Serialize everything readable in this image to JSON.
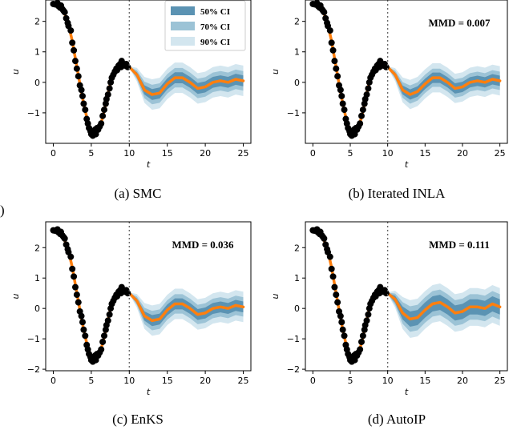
{
  "colors": {
    "ci50": "#5b93b3",
    "ci70": "#9cc3d6",
    "ci90": "#d3e6ef",
    "mean": "#ff7f0e",
    "obs": "#000000"
  },
  "stray_glyph": ")",
  "legend": {
    "items": [
      "50% CI",
      "70% CI",
      "90% CI"
    ]
  },
  "chart_data": [
    {
      "type": "line",
      "caption": "(a) SMC",
      "mmd": "",
      "legend": true,
      "xlabel": "t",
      "ylabel": "u",
      "xlim": [
        -1,
        26
      ],
      "ylim": [
        -2.0,
        2.7
      ],
      "xticks": [
        0,
        5,
        10,
        15,
        20,
        25
      ],
      "yticks": [
        -1,
        0,
        1,
        2
      ],
      "vline_x": 10,
      "forecast": [
        [
          10,
          0.5
        ],
        [
          11,
          0.25
        ],
        [
          12,
          -0.25
        ],
        [
          13,
          -0.4
        ],
        [
          14,
          -0.35
        ],
        [
          15,
          -0.05
        ],
        [
          16,
          0.15
        ],
        [
          17,
          0.15
        ],
        [
          18,
          0.0
        ],
        [
          19,
          -0.2
        ],
        [
          20,
          -0.15
        ],
        [
          21,
          0.0
        ],
        [
          22,
          0.05
        ],
        [
          23,
          0.0
        ],
        [
          24,
          0.1
        ],
        [
          25,
          0.05
        ]
      ],
      "band_widths": {
        "ci50": 0.18,
        "ci70": 0.32,
        "ci90": 0.5
      }
    },
    {
      "type": "line",
      "caption": "(b) Iterated INLA",
      "mmd": "MMD = 0.007",
      "legend": false,
      "xlabel": "t",
      "ylabel": "u",
      "xlim": [
        -1,
        26
      ],
      "ylim": [
        -2.0,
        2.7
      ],
      "xticks": [
        0,
        5,
        10,
        15,
        20,
        25
      ],
      "yticks": [
        -1,
        0,
        1,
        2
      ],
      "vline_x": 10,
      "forecast": [
        [
          10,
          0.5
        ],
        [
          11,
          0.25
        ],
        [
          12,
          -0.25
        ],
        [
          13,
          -0.4
        ],
        [
          14,
          -0.3
        ],
        [
          15,
          -0.05
        ],
        [
          16,
          0.15
        ],
        [
          17,
          0.15
        ],
        [
          18,
          0.0
        ],
        [
          19,
          -0.2
        ],
        [
          20,
          -0.15
        ],
        [
          21,
          0.0
        ],
        [
          22,
          0.05
        ],
        [
          23,
          0.0
        ],
        [
          24,
          0.1
        ],
        [
          25,
          0.05
        ]
      ],
      "band_widths": {
        "ci50": 0.17,
        "ci70": 0.3,
        "ci90": 0.48
      }
    },
    {
      "type": "line",
      "caption": "(c) EnKS",
      "mmd": "MMD = 0.036",
      "legend": false,
      "xlabel": "t",
      "ylabel": "u",
      "xlim": [
        -1,
        26
      ],
      "ylim": [
        -2.05,
        2.85
      ],
      "xticks": [
        0,
        5,
        10,
        15,
        20,
        25
      ],
      "yticks": [
        -2,
        -1,
        0,
        1,
        2
      ],
      "vline_x": 10,
      "forecast": [
        [
          10,
          0.5
        ],
        [
          11,
          0.25
        ],
        [
          12,
          -0.25
        ],
        [
          13,
          -0.4
        ],
        [
          14,
          -0.35
        ],
        [
          15,
          -0.05
        ],
        [
          16,
          0.15
        ],
        [
          17,
          0.15
        ],
        [
          18,
          0.0
        ],
        [
          19,
          -0.2
        ],
        [
          20,
          -0.15
        ],
        [
          21,
          0.0
        ],
        [
          22,
          0.05
        ],
        [
          23,
          0.0
        ],
        [
          24,
          0.1
        ],
        [
          25,
          0.05
        ]
      ],
      "band_widths": {
        "ci50": 0.18,
        "ci70": 0.32,
        "ci90": 0.5
      }
    },
    {
      "type": "line",
      "caption": "(d) AutoIP",
      "mmd": "MMD = 0.111",
      "legend": false,
      "xlabel": "t",
      "ylabel": "u",
      "xlim": [
        -1,
        26
      ],
      "ylim": [
        -2.05,
        2.85
      ],
      "xticks": [
        0,
        5,
        10,
        15,
        20,
        25
      ],
      "yticks": [
        -2,
        -1,
        0,
        1,
        2
      ],
      "vline_x": 10,
      "forecast": [
        [
          10,
          0.5
        ],
        [
          11,
          0.3
        ],
        [
          12,
          -0.15
        ],
        [
          13,
          -0.35
        ],
        [
          14,
          -0.3
        ],
        [
          15,
          -0.05
        ],
        [
          16,
          0.15
        ],
        [
          17,
          0.2
        ],
        [
          18,
          0.05
        ],
        [
          19,
          -0.15
        ],
        [
          20,
          -0.1
        ],
        [
          21,
          0.05
        ],
        [
          22,
          0.05
        ],
        [
          23,
          0.0
        ],
        [
          24,
          0.15
        ],
        [
          25,
          0.05
        ]
      ],
      "band_widths": {
        "ci50": 0.25,
        "ci70": 0.42,
        "ci90": 0.62
      }
    }
  ],
  "observations": [
    [
      0.0,
      2.57
    ],
    [
      0.2,
      2.56
    ],
    [
      0.4,
      2.55
    ],
    [
      0.55,
      2.6
    ],
    [
      0.7,
      2.5
    ],
    [
      0.9,
      2.45
    ],
    [
      1.0,
      2.52
    ],
    [
      1.2,
      2.4
    ],
    [
      1.35,
      2.35
    ],
    [
      1.5,
      2.3
    ],
    [
      1.7,
      2.1
    ],
    [
      1.9,
      1.95
    ],
    [
      2.0,
      1.85
    ],
    [
      2.3,
      1.7
    ],
    [
      2.5,
      1.3
    ],
    [
      2.7,
      1.05
    ],
    [
      2.9,
      0.7
    ],
    [
      3.1,
      0.45
    ],
    [
      3.3,
      0.2
    ],
    [
      3.5,
      -0.1
    ],
    [
      3.7,
      -0.25
    ],
    [
      3.85,
      -0.45
    ],
    [
      4.0,
      -0.7
    ],
    [
      4.2,
      -0.9
    ],
    [
      4.4,
      -1.2
    ],
    [
      4.55,
      -1.35
    ],
    [
      4.7,
      -1.5
    ],
    [
      4.9,
      -1.6
    ],
    [
      5.0,
      -1.7
    ],
    [
      5.2,
      -1.75
    ],
    [
      5.4,
      -1.6
    ],
    [
      5.5,
      -1.55
    ],
    [
      5.6,
      -1.7
    ],
    [
      5.75,
      -1.5
    ],
    [
      5.9,
      -1.55
    ],
    [
      6.1,
      -1.45
    ],
    [
      6.3,
      -1.35
    ],
    [
      6.5,
      -1.1
    ],
    [
      6.7,
      -0.9
    ],
    [
      6.9,
      -0.7
    ],
    [
      7.0,
      -0.55
    ],
    [
      7.2,
      -0.4
    ],
    [
      7.4,
      -0.2
    ],
    [
      7.55,
      0.0
    ],
    [
      7.7,
      0.15
    ],
    [
      7.9,
      0.25
    ],
    [
      8.1,
      0.35
    ],
    [
      8.3,
      0.45
    ],
    [
      8.4,
      0.4
    ],
    [
      8.6,
      0.55
    ],
    [
      8.8,
      0.6
    ],
    [
      8.9,
      0.5
    ],
    [
      9.0,
      0.7
    ],
    [
      9.2,
      0.6
    ],
    [
      9.4,
      0.55
    ],
    [
      9.6,
      0.6
    ],
    [
      9.8,
      0.5
    ]
  ],
  "fit_curve": [
    [
      0,
      2.58
    ],
    [
      0.5,
      2.55
    ],
    [
      1,
      2.45
    ],
    [
      1.5,
      2.25
    ],
    [
      2,
      1.9
    ],
    [
      2.5,
      1.35
    ],
    [
      3,
      0.65
    ],
    [
      3.5,
      -0.05
    ],
    [
      4,
      -0.7
    ],
    [
      4.5,
      -1.25
    ],
    [
      5,
      -1.6
    ],
    [
      5.5,
      -1.7
    ],
    [
      6,
      -1.55
    ],
    [
      6.5,
      -1.15
    ],
    [
      7,
      -0.6
    ],
    [
      7.5,
      -0.05
    ],
    [
      8,
      0.3
    ],
    [
      8.5,
      0.5
    ],
    [
      9,
      0.58
    ],
    [
      9.5,
      0.58
    ],
    [
      10,
      0.5
    ]
  ]
}
